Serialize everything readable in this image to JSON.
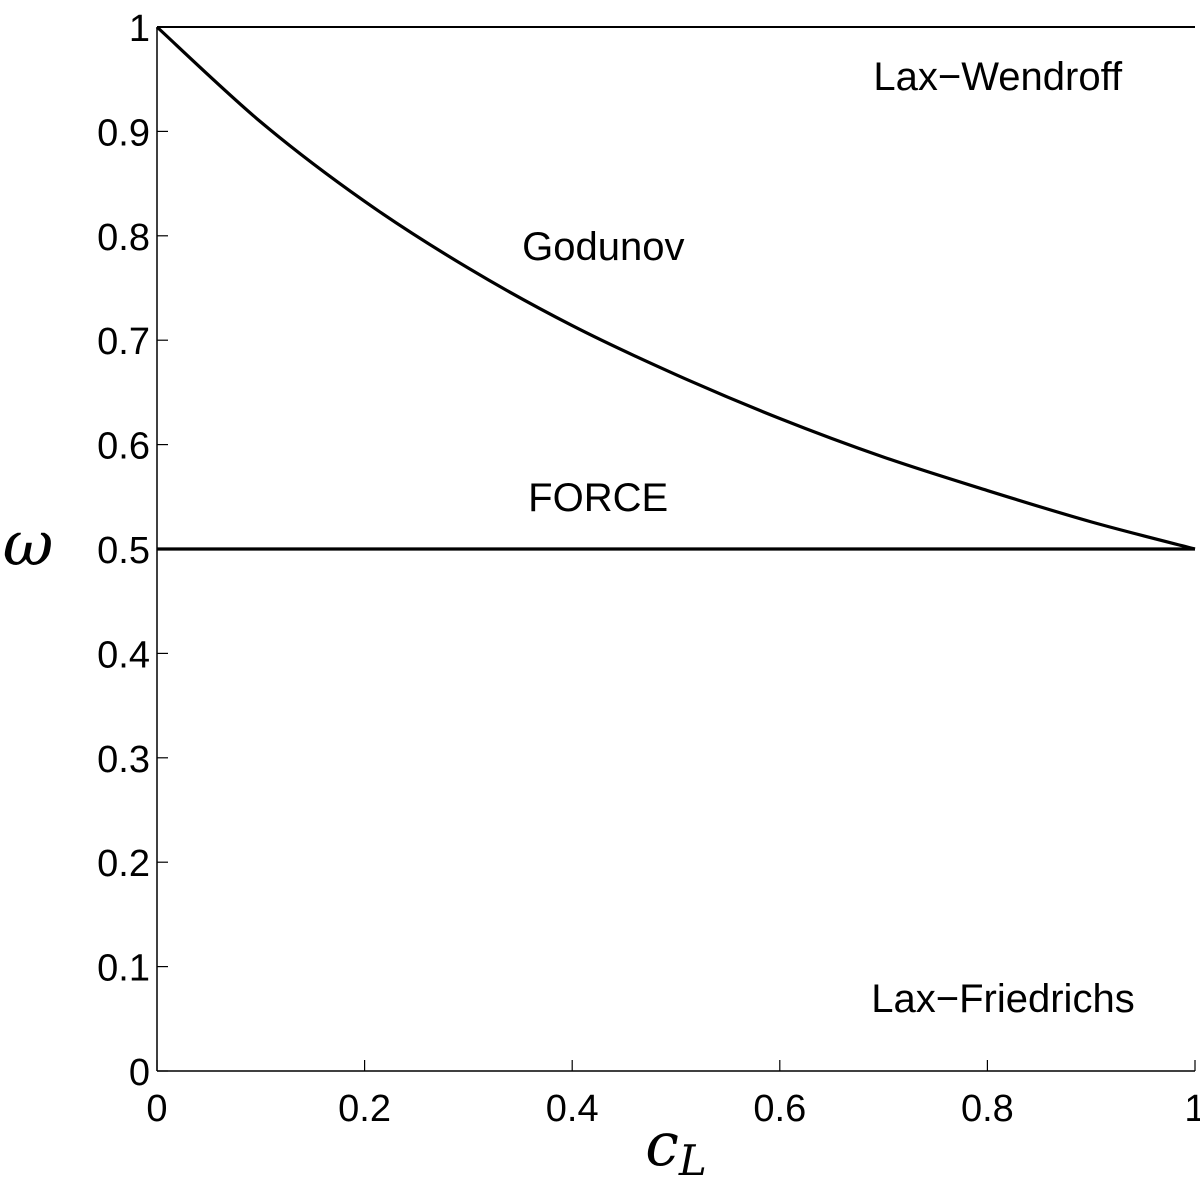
{
  "chart_data": {
    "type": "line",
    "title": "",
    "xlabel": "c",
    "xlabel_subscript": "L",
    "ylabel": "ω",
    "xlim": [
      0,
      1
    ],
    "ylim": [
      0,
      1
    ],
    "grid": false,
    "xticks": [
      0,
      0.2,
      0.4,
      0.6,
      0.8,
      1
    ],
    "xtick_labels": [
      "0",
      "0.2",
      "0.4",
      "0.6",
      "0.8",
      "1"
    ],
    "yticks": [
      0,
      0.1,
      0.2,
      0.3,
      0.4,
      0.5,
      0.6,
      0.7,
      0.8,
      0.9,
      1
    ],
    "ytick_labels": [
      "0",
      "0.1",
      "0.2",
      "0.3",
      "0.4",
      "0.5",
      "0.6",
      "0.7",
      "0.8",
      "0.9",
      "1"
    ],
    "line_color": "#000000",
    "series": [
      {
        "x": [
          0,
          1
        ],
        "y": [
          1,
          1
        ]
      },
      {
        "x": [
          0,
          0.1,
          0.2,
          0.3,
          0.4,
          0.5,
          0.6,
          0.7,
          0.8,
          0.9,
          1
        ],
        "y": [
          1,
          0.909,
          0.833,
          0.769,
          0.714,
          0.667,
          0.625,
          0.588,
          0.556,
          0.526,
          0.5
        ]
      },
      {
        "x": [
          0,
          1
        ],
        "y": [
          0.5,
          0.5
        ]
      }
    ],
    "annotations": [
      {
        "text": "Lax−Wendroff",
        "x": 0.81,
        "y": 0.953
      },
      {
        "text": "Godunov",
        "x": 0.43,
        "y": 0.79
      },
      {
        "text": "FORCE",
        "x": 0.425,
        "y": 0.55
      },
      {
        "text": "Lax−Friedrichs",
        "x": 0.815,
        "y": 0.07
      }
    ]
  }
}
